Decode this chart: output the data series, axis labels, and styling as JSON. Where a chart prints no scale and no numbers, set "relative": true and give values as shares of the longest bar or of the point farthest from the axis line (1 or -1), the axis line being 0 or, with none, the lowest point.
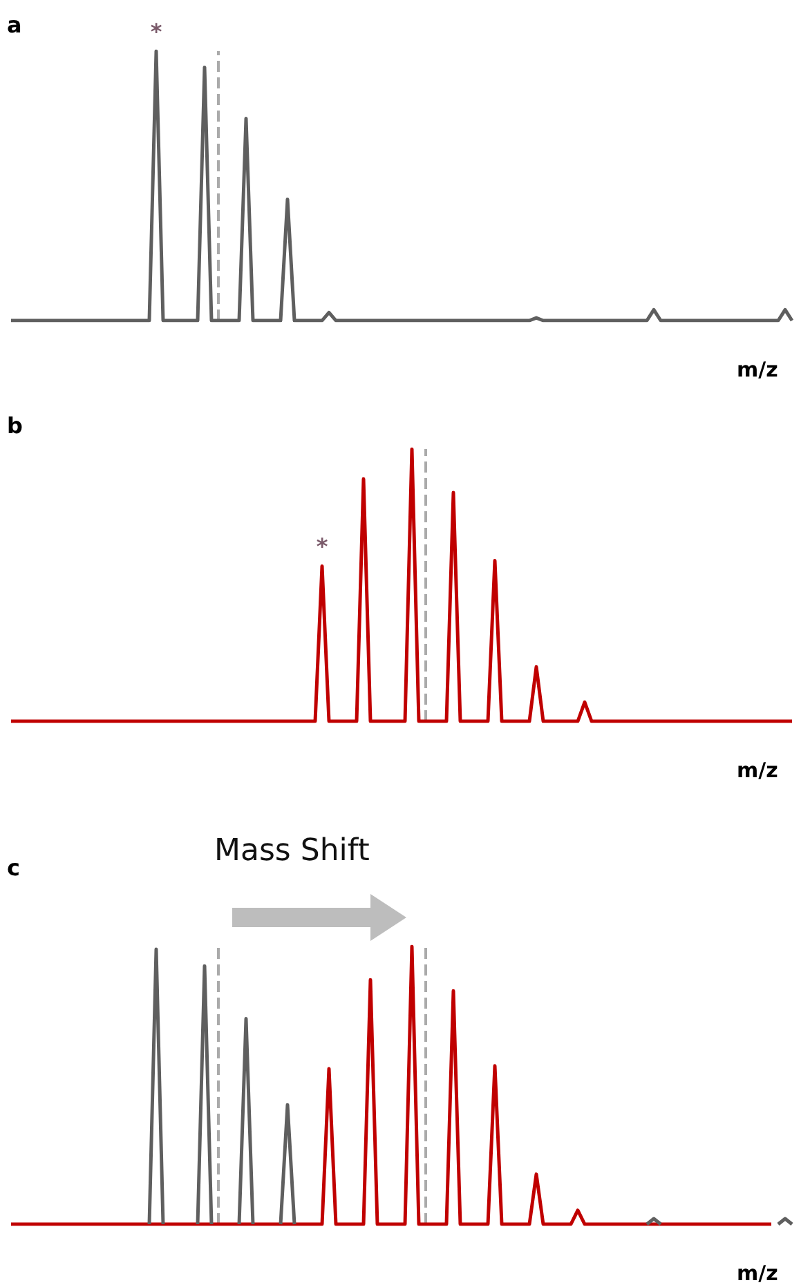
{
  "chart_data": [
    {
      "type": "line",
      "title": "a",
      "xlabel": "m/z",
      "relative": true,
      "grid": false,
      "categories": [
        null,
        null,
        null,
        null,
        null,
        null,
        null,
        null,
        null,
        null,
        null,
        null,
        null,
        null,
        null,
        null,
        null,
        null,
        null,
        null,
        null,
        null,
        null,
        null,
        null,
        null,
        null,
        null,
        null,
        null,
        null,
        null,
        null,
        null,
        null,
        null,
        null,
        null,
        null,
        null,
        null,
        null,
        null,
        null,
        null,
        null,
        null,
        null,
        null,
        null,
        null,
        null,
        null,
        null,
        null,
        null,
        null,
        null,
        null,
        null,
        null,
        null,
        null,
        null,
        null,
        null,
        null,
        null,
        null,
        null,
        null,
        null,
        null,
        null,
        null,
        null,
        null,
        null,
        null,
        null,
        null,
        null,
        null,
        null,
        null,
        null,
        null,
        null,
        null,
        null,
        null,
        null,
        null,
        null,
        null,
        null,
        null,
        null,
        null,
        null,
        null,
        null,
        null,
        null,
        null,
        null,
        null,
        null,
        null,
        null,
        null,
        null,
        null,
        null
      ],
      "series": [
        {
          "color": "#5f5f5f",
          "values": [
            0,
            0,
            0,
            0,
            0,
            0,
            0,
            0,
            0,
            0,
            0,
            0,
            0,
            0,
            0,
            0,
            0,
            0,
            0,
            0,
            0,
            1,
            0,
            0,
            0,
            0,
            0,
            0,
            0.94,
            0,
            0,
            0,
            0,
            0,
            0.75,
            0,
            0,
            0,
            0,
            0,
            0.45,
            0,
            0,
            0,
            0,
            0,
            0.03,
            0,
            0,
            0,
            0,
            0,
            0,
            0,
            0,
            0,
            0,
            0,
            0,
            0,
            0,
            0,
            0,
            0,
            0,
            0,
            0,
            0,
            0,
            0,
            0,
            0,
            0,
            0,
            0,
            0,
            0.01,
            0,
            0,
            0,
            0,
            0,
            0,
            0,
            0,
            0,
            0,
            0,
            0,
            0,
            0,
            0,
            0,
            0.04,
            0,
            0,
            0,
            0,
            0,
            0,
            0,
            0,
            0,
            0,
            0,
            0,
            0,
            0,
            0,
            0,
            0,
            0,
            0.04,
            0
          ]
        }
      ],
      "annotations": [
        {
          "text": "*",
          "y": 1
        }
      ]
    },
    {
      "type": "line",
      "title": "b",
      "xlabel": "m/z",
      "relative": true,
      "grid": false,
      "categories": [
        null,
        null,
        null,
        null,
        null,
        null,
        null,
        null,
        null,
        null,
        null,
        null,
        null,
        null,
        null,
        null,
        null,
        null,
        null,
        null,
        null,
        null,
        null,
        null,
        null,
        null,
        null,
        null,
        null,
        null,
        null,
        null,
        null,
        null,
        null,
        null,
        null,
        null,
        null,
        null,
        null,
        null,
        null,
        null,
        null,
        null,
        null,
        null,
        null,
        null,
        null,
        null,
        null,
        null,
        null,
        null,
        null,
        null,
        null,
        null,
        null,
        null,
        null,
        null,
        null,
        null,
        null,
        null,
        null,
        null,
        null,
        null,
        null,
        null,
        null,
        null,
        null,
        null,
        null,
        null,
        null,
        null,
        null,
        null,
        null,
        null,
        null,
        null,
        null,
        null,
        null,
        null,
        null,
        null,
        null,
        null,
        null,
        null,
        null,
        null,
        null,
        null,
        null,
        null,
        null,
        null,
        null,
        null,
        null,
        null,
        null,
        null,
        null,
        null
      ],
      "series": [
        {
          "color": "#c00000",
          "values": [
            0,
            0,
            0,
            0,
            0,
            0,
            0,
            0,
            0,
            0,
            0,
            0,
            0,
            0,
            0,
            0,
            0,
            0,
            0,
            0,
            0,
            0,
            0,
            0,
            0,
            0,
            0,
            0,
            0,
            0,
            0,
            0,
            0,
            0,
            0,
            0,
            0,
            0,
            0,
            0,
            0,
            0,
            0,
            0,
            0,
            0.57,
            0,
            0,
            0,
            0,
            0,
            0.89,
            0,
            0,
            0,
            0,
            0,
            0,
            1,
            0,
            0,
            0,
            0,
            0,
            0.84,
            0,
            0,
            0,
            0,
            0,
            0.59,
            0,
            0,
            0,
            0,
            0,
            0.2,
            0,
            0,
            0,
            0,
            0,
            0,
            0.07,
            0,
            0,
            0,
            0,
            0,
            0,
            0,
            0,
            0,
            0,
            0,
            0,
            0,
            0,
            0,
            0,
            0,
            0,
            0,
            0,
            0,
            0,
            0,
            0,
            0,
            0,
            0,
            0,
            0,
            0
          ]
        }
      ],
      "annotations": [
        {
          "text": "*",
          "y": 0.57
        }
      ]
    },
    {
      "type": "line",
      "title": "c",
      "xlabel": "m/z",
      "relative": true,
      "grid": false,
      "categories": [
        null,
        null,
        null,
        null,
        null,
        null,
        null,
        null,
        null,
        null,
        null,
        null,
        null,
        null,
        null,
        null,
        null,
        null,
        null,
        null,
        null,
        null,
        null,
        null,
        null,
        null,
        null,
        null,
        null,
        null,
        null,
        null,
        null,
        null,
        null,
        null,
        null,
        null,
        null,
        null,
        null,
        null,
        null,
        null,
        null,
        null,
        null,
        null,
        null,
        null,
        null,
        null,
        null,
        null,
        null,
        null,
        null,
        null,
        null,
        null,
        null,
        null,
        null,
        null,
        null,
        null,
        null,
        null,
        null,
        null,
        null,
        null,
        null,
        null,
        null,
        null,
        null,
        null,
        null,
        null,
        null,
        null,
        null,
        null,
        null,
        null,
        null,
        null,
        null,
        null,
        null,
        null,
        null,
        null,
        null,
        null,
        null,
        null,
        null,
        null,
        null,
        null,
        null,
        null,
        null,
        null,
        null,
        null,
        null,
        null,
        null,
        null,
        null,
        null
      ],
      "series": [
        {
          "color": "#5f5f5f",
          "values": [
            null,
            null,
            null,
            null,
            null,
            null,
            null,
            null,
            null,
            null,
            null,
            null,
            null,
            null,
            null,
            null,
            null,
            null,
            null,
            null,
            0,
            0.99,
            0,
            null,
            null,
            null,
            null,
            0,
            0.93,
            0,
            null,
            null,
            null,
            0,
            0.74,
            0,
            null,
            null,
            null,
            0,
            0.43,
            0,
            null,
            null,
            null,
            null,
            null,
            null,
            null,
            null,
            null,
            null,
            null,
            null,
            null,
            null,
            null,
            null,
            null,
            null,
            null,
            null,
            null,
            null,
            null,
            null,
            null,
            null,
            null,
            null,
            null,
            null,
            null,
            null,
            null,
            null,
            null,
            null,
            null,
            null,
            null,
            null,
            null,
            null,
            null,
            null,
            null,
            null,
            null,
            null,
            null,
            null,
            0,
            0.02,
            0,
            null,
            null,
            null,
            null,
            null,
            null,
            null,
            null,
            null,
            null,
            null,
            null,
            null,
            null,
            null,
            null,
            0,
            0.02,
            0
          ]
        },
        {
          "color": "#c00000",
          "values": [
            0,
            0,
            0,
            0,
            0,
            0,
            0,
            0,
            0,
            0,
            0,
            0,
            0,
            0,
            0,
            0,
            0,
            0,
            0,
            0,
            null,
            null,
            null,
            0,
            0,
            0,
            0,
            null,
            null,
            null,
            0,
            0,
            0,
            null,
            null,
            null,
            0,
            0,
            0,
            null,
            null,
            null,
            0,
            0,
            0,
            0,
            0.56,
            0,
            0,
            0,
            0,
            0,
            0.88,
            0,
            0,
            0,
            0,
            0,
            1,
            0,
            0,
            0,
            0,
            0,
            0.84,
            0,
            0,
            0,
            0,
            0,
            0.57,
            0,
            0,
            0,
            0,
            0,
            0.18,
            0,
            0,
            0,
            0,
            0,
            0.05,
            0,
            0,
            0,
            0,
            0,
            0,
            0,
            0,
            0,
            null,
            null,
            null,
            0,
            0,
            0,
            0,
            0,
            0,
            0,
            0,
            0,
            0,
            0,
            0,
            0,
            0,
            0,
            0,
            null,
            null,
            null
          ]
        }
      ],
      "annotations": [
        "Mass Shift"
      ]
    }
  ]
}
